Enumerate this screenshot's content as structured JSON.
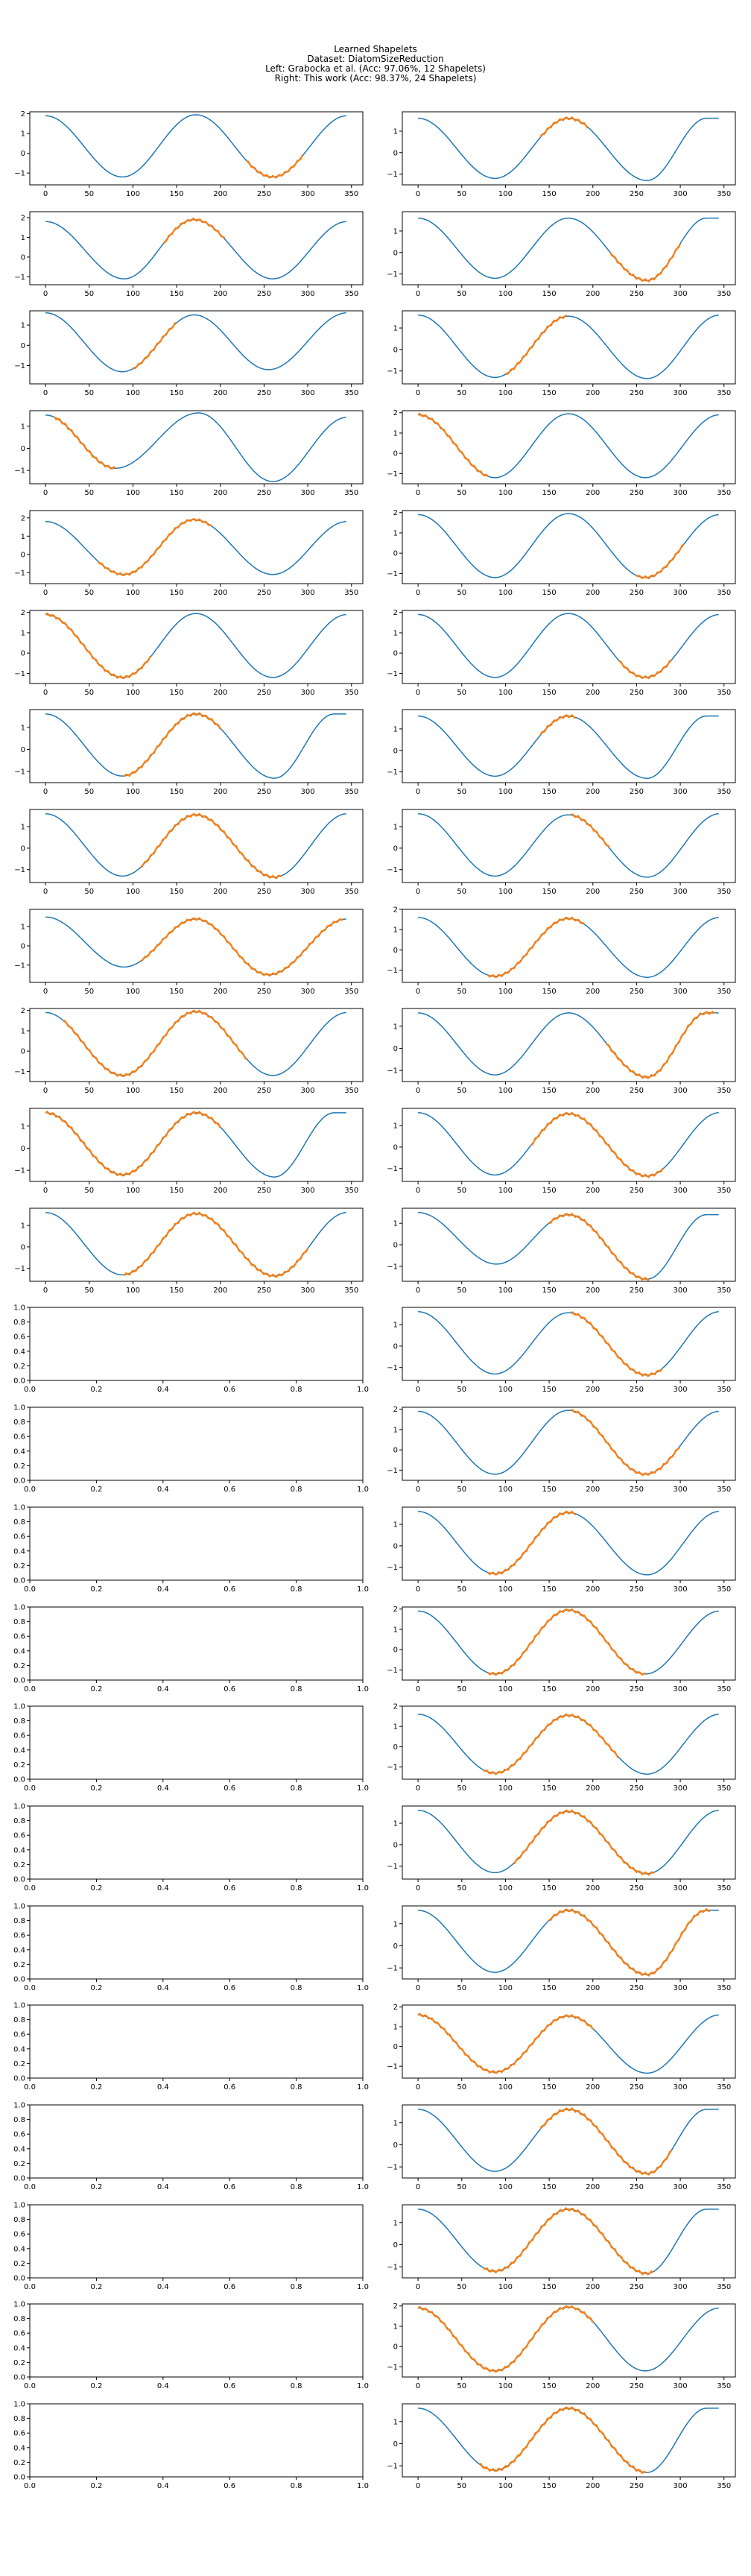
{
  "figure": {
    "title": "Learned Shapelets",
    "subtitle_lines": [
      "Dataset: DiatomSizeReduction",
      "Left: Grabocka et al. (Acc: 97.06%, 12 Shapelets)",
      "Right: This work (Acc: 98.37%, 24 Shapelets)"
    ]
  },
  "chart_data": {
    "type": "line",
    "layout": "grid of 24 rows x 2 columns",
    "colors": {
      "series": "#1f77b4",
      "shapelet": "#ff7f0e",
      "axes": "#000000",
      "background": "#ffffff"
    },
    "grid": false,
    "xlim": [
      -18,
      363
    ],
    "xticks": [
      0,
      50,
      100,
      150,
      200,
      250,
      300,
      350
    ],
    "xticklabels": [
      "0",
      "50",
      "100",
      "150",
      "200",
      "250",
      "300",
      "350"
    ],
    "empty_axes_ticks": [
      0.0,
      0.2,
      0.4,
      0.6,
      0.8,
      1.0
    ],
    "empty_axes_ticklabels": [
      "0.0",
      "0.2",
      "0.4",
      "0.6",
      "0.8",
      "1.0"
    ],
    "series_length": 345,
    "series_description": "Time series of the DiatomSizeReduction dataset with learned shapelet overlaid at its best-matching offset",
    "left_column": {
      "name": "Grabocka et al.",
      "panels": [
        {
          "variant": 0,
          "shapelet": [
            230,
            295
          ],
          "ylim": [
            -1.6,
            2.1
          ],
          "yticks": [
            -1,
            0,
            1,
            2
          ]
        },
        {
          "variant": 1,
          "shapelet": [
            135,
            205
          ],
          "ylim": [
            -1.4,
            2.3
          ],
          "yticks": [
            -1,
            0,
            1,
            2
          ]
        },
        {
          "variant": 2,
          "shapelet": [
            100,
            150
          ],
          "ylim": [
            -1.9,
            1.7
          ],
          "yticks": [
            -1,
            0,
            1
          ]
        },
        {
          "variant": 3,
          "shapelet": [
            10,
            80
          ],
          "ylim": [
            -1.6,
            1.7
          ],
          "yticks": [
            -1,
            0,
            1
          ]
        },
        {
          "variant": 1,
          "shapelet": [
            60,
            190
          ],
          "ylim": [
            -1.6,
            2.4
          ],
          "yticks": [
            -1,
            0,
            1,
            2
          ]
        },
        {
          "variant": 0,
          "shapelet": [
            0,
            120
          ],
          "ylim": [
            -1.5,
            2.1
          ],
          "yticks": [
            -1,
            0,
            1,
            2
          ]
        },
        {
          "variant": 4,
          "shapelet": [
            90,
            200
          ],
          "ylim": [
            -1.5,
            1.8
          ],
          "yticks": [
            -1,
            0,
            1
          ]
        },
        {
          "variant": 5,
          "shapelet": [
            110,
            270
          ],
          "ylim": [
            -1.6,
            1.8
          ],
          "yticks": [
            -1,
            0,
            1
          ]
        },
        {
          "variant": 6,
          "shapelet": [
            110,
            340
          ],
          "ylim": [
            -1.9,
            1.9
          ],
          "yticks": [
            -1,
            0,
            1
          ]
        },
        {
          "variant": 0,
          "shapelet": [
            20,
            230
          ],
          "ylim": [
            -1.5,
            2.1
          ],
          "yticks": [
            -1,
            0,
            1,
            2
          ]
        },
        {
          "variant": 4,
          "shapelet": [
            0,
            200
          ],
          "ylim": [
            -1.5,
            1.8
          ],
          "yticks": [
            -1,
            0,
            1
          ]
        },
        {
          "variant": 5,
          "shapelet": [
            90,
            300
          ],
          "ylim": [
            -1.6,
            1.8
          ],
          "yticks": [
            -1,
            0,
            1
          ]
        }
      ],
      "empty_panels": 12
    },
    "right_column": {
      "name": "This work",
      "panels": [
        {
          "variant": 4,
          "shapelet": [
            140,
            195
          ],
          "ylim": [
            -1.5,
            1.9
          ],
          "yticks": [
            -1,
            0,
            1
          ]
        },
        {
          "variant": 4,
          "shapelet": [
            220,
            300
          ],
          "ylim": [
            -1.5,
            1.9
          ],
          "yticks": [
            -1,
            0,
            1
          ]
        },
        {
          "variant": 5,
          "shapelet": [
            100,
            170
          ],
          "ylim": [
            -1.6,
            1.8
          ],
          "yticks": [
            -1,
            0,
            1
          ]
        },
        {
          "variant": 0,
          "shapelet": [
            0,
            80
          ],
          "ylim": [
            -1.5,
            2.1
          ],
          "yticks": [
            -1,
            0,
            1,
            2
          ]
        },
        {
          "variant": 0,
          "shapelet": [
            250,
            305
          ],
          "ylim": [
            -1.5,
            2.1
          ],
          "yticks": [
            -1,
            0,
            1,
            2
          ]
        },
        {
          "variant": 0,
          "shapelet": [
            230,
            290
          ],
          "ylim": [
            -1.5,
            2.1
          ],
          "yticks": [
            -1,
            0,
            1,
            2
          ]
        },
        {
          "variant": 4,
          "shapelet": [
            140,
            180
          ],
          "ylim": [
            -1.5,
            1.9
          ],
          "yticks": [
            -1,
            0,
            1
          ]
        },
        {
          "variant": 5,
          "shapelet": [
            175,
            220
          ],
          "ylim": [
            -1.6,
            1.8
          ],
          "yticks": [
            -1,
            0,
            1
          ]
        },
        {
          "variant": 5,
          "shapelet": [
            80,
            190
          ],
          "ylim": [
            -1.6,
            2.0
          ],
          "yticks": [
            -1,
            0,
            1,
            2
          ]
        },
        {
          "variant": 4,
          "shapelet": [
            215,
            340
          ],
          "ylim": [
            -1.5,
            1.8
          ],
          "yticks": [
            -1,
            0,
            1
          ]
        },
        {
          "variant": 5,
          "shapelet": [
            130,
            280
          ],
          "ylim": [
            -1.6,
            1.8
          ],
          "yticks": [
            -1,
            0,
            1
          ]
        },
        {
          "variant": 7,
          "shapelet": [
            150,
            265
          ],
          "ylim": [
            -1.7,
            1.7
          ],
          "yticks": [
            -1,
            0,
            1
          ]
        },
        {
          "variant": 5,
          "shapelet": [
            175,
            280
          ],
          "ylim": [
            -1.6,
            1.8
          ],
          "yticks": [
            -1,
            0,
            1
          ]
        },
        {
          "variant": 0,
          "shapelet": [
            175,
            300
          ],
          "ylim": [
            -1.5,
            2.1
          ],
          "yticks": [
            -1,
            0,
            1,
            2
          ]
        },
        {
          "variant": 5,
          "shapelet": [
            80,
            180
          ],
          "ylim": [
            -1.6,
            1.8
          ],
          "yticks": [
            -1,
            0,
            1
          ]
        },
        {
          "variant": 0,
          "shapelet": [
            80,
            260
          ],
          "ylim": [
            -1.5,
            2.1
          ],
          "yticks": [
            -1,
            0,
            1,
            2
          ]
        },
        {
          "variant": 5,
          "shapelet": [
            75,
            230
          ],
          "ylim": [
            -1.6,
            2.0
          ],
          "yticks": [
            -1,
            0,
            1,
            2
          ]
        },
        {
          "variant": 5,
          "shapelet": [
            110,
            270
          ],
          "ylim": [
            -1.6,
            1.8
          ],
          "yticks": [
            -1,
            0,
            1
          ]
        },
        {
          "variant": 4,
          "shapelet": [
            150,
            335
          ],
          "ylim": [
            -1.5,
            1.8
          ],
          "yticks": [
            -1,
            0,
            1
          ]
        },
        {
          "variant": 5,
          "shapelet": [
            0,
            200
          ],
          "ylim": [
            -1.6,
            2.1
          ],
          "yticks": [
            -1,
            0,
            1,
            2
          ]
        },
        {
          "variant": 4,
          "shapelet": [
            140,
            290
          ],
          "ylim": [
            -1.5,
            1.8
          ],
          "yticks": [
            -1,
            0,
            1
          ]
        },
        {
          "variant": 4,
          "shapelet": [
            75,
            270
          ],
          "ylim": [
            -1.5,
            1.8
          ],
          "yticks": [
            -1,
            0,
            1
          ]
        },
        {
          "variant": 0,
          "shapelet": [
            0,
            200
          ],
          "ylim": [
            -1.5,
            2.1
          ],
          "yticks": [
            -1,
            0,
            1,
            2
          ]
        },
        {
          "variant": 4,
          "shapelet": [
            70,
            260
          ],
          "ylim": [
            -1.5,
            1.8
          ],
          "yticks": [
            -1,
            0,
            1
          ]
        }
      ]
    }
  }
}
